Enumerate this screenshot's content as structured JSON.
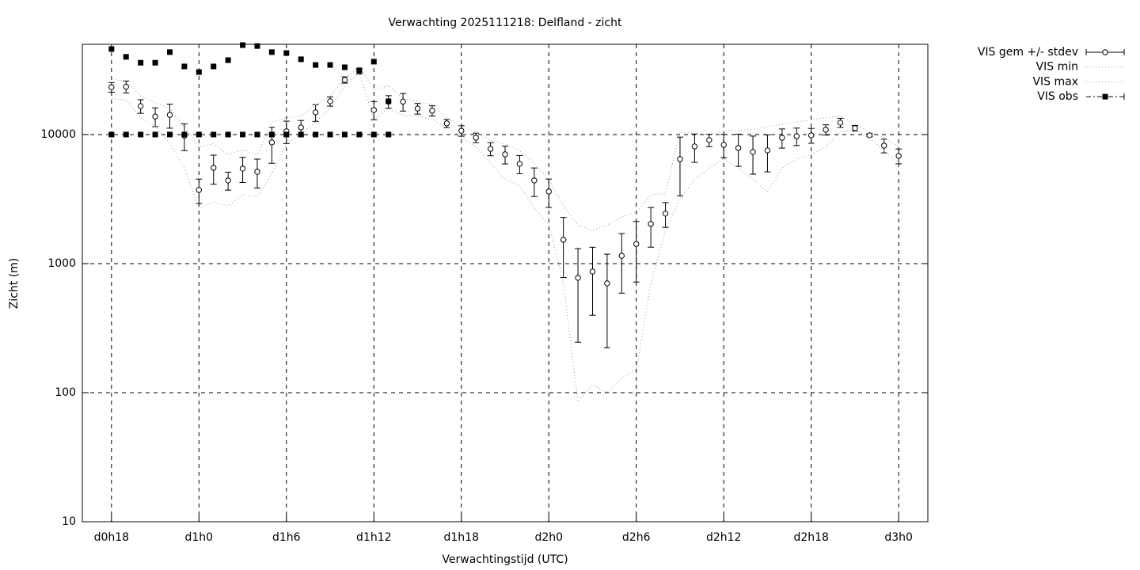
{
  "chart_data": {
    "type": "errorbar",
    "title": "Verwachting 2025111218: Delfland - zicht",
    "xlabel": "Verwachtingstijd (UTC)",
    "ylabel": "Zicht (m)",
    "log_y": true,
    "grid": true,
    "legend": "outside-right",
    "xlim": [
      16,
      74
    ],
    "xticks": [
      {
        "value": 18,
        "label": "d0h18"
      },
      {
        "value": 24,
        "label": "d1h0"
      },
      {
        "value": 30,
        "label": "d1h6"
      },
      {
        "value": 36,
        "label": "d1h12"
      },
      {
        "value": 42,
        "label": "d1h18"
      },
      {
        "value": 48,
        "label": "d2h0"
      },
      {
        "value": 54,
        "label": "d2h6"
      },
      {
        "value": 60,
        "label": "d2h12"
      },
      {
        "value": 66,
        "label": "d2h18"
      },
      {
        "value": 72,
        "label": "d3h0"
      }
    ],
    "ylim": [
      10,
      50000
    ],
    "yticks": [
      10,
      100,
      1000,
      10000
    ],
    "x": [
      18,
      19,
      20,
      21,
      22,
      23,
      24,
      25,
      26,
      27,
      28,
      29,
      30,
      31,
      32,
      33,
      34,
      35,
      36,
      37,
      38,
      39,
      40,
      41,
      42,
      43,
      44,
      45,
      46,
      47,
      48,
      49,
      50,
      51,
      52,
      53,
      54,
      55,
      56,
      57,
      58,
      59,
      60,
      61,
      62,
      63,
      64,
      65,
      66,
      67,
      68,
      69,
      70,
      71,
      72
    ],
    "series": [
      {
        "name": "VIS gem +/- stdev",
        "kind": "errorbar",
        "color": "#000000",
        "values": [
          23300,
          23500,
          16600,
          13800,
          14200,
          9800,
          3720,
          5520,
          4410,
          5450,
          5150,
          8690,
          10600,
          11350,
          14850,
          18100,
          26500,
          31000,
          15500,
          18000,
          18000,
          15900,
          15300,
          12200,
          10700,
          9450,
          7750,
          7020,
          5930,
          4410,
          3620,
          1530,
          776,
          868,
          703,
          1150,
          1420,
          2030,
          2440,
          6450,
          8090,
          9060,
          8320,
          7870,
          7330,
          7540,
          9450,
          9720,
          9860,
          10900,
          12360,
          11200,
          9860,
          8210,
          6830
        ],
        "errors": [
          2000,
          2500,
          2000,
          2300,
          3000,
          2300,
          800,
          1400,
          700,
          1200,
          1300,
          2700,
          2100,
          1500,
          2200,
          1500,
          1500,
          1500,
          2500,
          2000,
          2800,
          1500,
          1400,
          900,
          1000,
          800,
          900,
          1100,
          950,
          1100,
          900,
          750,
          530,
          470,
          480,
          560,
          700,
          690,
          530,
          3100,
          2000,
          1000,
          1700,
          2200,
          2400,
          2400,
          1600,
          1500,
          1300,
          1000,
          1000,
          550,
          250,
          1000,
          900
        ]
      },
      {
        "name": "VIS min",
        "kind": "dotted",
        "color": "#999999",
        "values": [
          19000,
          18500,
          13500,
          11500,
          8500,
          5500,
          2700,
          3000,
          2800,
          3400,
          3300,
          5000,
          8500,
          10000,
          12500,
          16000,
          24000,
          30000,
          13000,
          16000,
          14000,
          14000,
          13000,
          11500,
          9500,
          8000,
          6000,
          4500,
          4000,
          2700,
          2000,
          700,
          85,
          115,
          100,
          130,
          150,
          700,
          1800,
          3200,
          4500,
          5500,
          6500,
          5500,
          4500,
          3600,
          5500,
          6500,
          7000,
          8000,
          10500,
          11000,
          9500,
          7500,
          6000
        ]
      },
      {
        "name": "VIS max",
        "kind": "dotted",
        "color": "#999999",
        "values": [
          26700,
          26000,
          20000,
          17600,
          16000,
          11500,
          8000,
          8500,
          7000,
          7600,
          7000,
          12500,
          13500,
          14000,
          17000,
          20000,
          27000,
          34000,
          22000,
          24000,
          19000,
          18000,
          17000,
          13500,
          11500,
          10500,
          9000,
          8500,
          7500,
          6000,
          4500,
          2800,
          2000,
          1800,
          2000,
          2300,
          2500,
          3400,
          3500,
          10500,
          10200,
          10000,
          10500,
          10800,
          11000,
          11500,
          12000,
          12500,
          13000,
          13500,
          14000,
          12000,
          10500,
          9500,
          8000
        ]
      },
      {
        "name": "VIS obs",
        "kind": "points",
        "color": "#000000",
        "values": [
          46000,
          40000,
          36000,
          36000,
          43500,
          33700,
          30500,
          33700,
          37700,
          49300,
          48500,
          43500,
          42800,
          38300,
          34600,
          34600,
          33200,
          31400,
          36700,
          18100,
          null,
          null,
          null,
          null,
          null,
          null,
          null,
          null,
          null,
          null,
          null,
          null,
          null,
          null,
          null,
          null,
          null,
          null,
          null,
          null,
          null,
          null,
          null,
          null,
          null,
          null,
          null,
          null,
          null,
          null,
          null,
          null,
          null,
          null,
          null
        ],
        "values_low": [
          10000,
          10000,
          10000,
          10000,
          10000,
          10000,
          10000,
          10000,
          10000,
          10000,
          10000,
          10000,
          10000,
          10000,
          10000,
          10000,
          10000,
          10000,
          10000,
          10000,
          null,
          null,
          null,
          null,
          null,
          null,
          null,
          null,
          null,
          null,
          null,
          null,
          null,
          null,
          null,
          null,
          null,
          null,
          null,
          null,
          null,
          null,
          null,
          null,
          null,
          null,
          null,
          null,
          null,
          null,
          null,
          null,
          null,
          null,
          null
        ]
      }
    ]
  }
}
